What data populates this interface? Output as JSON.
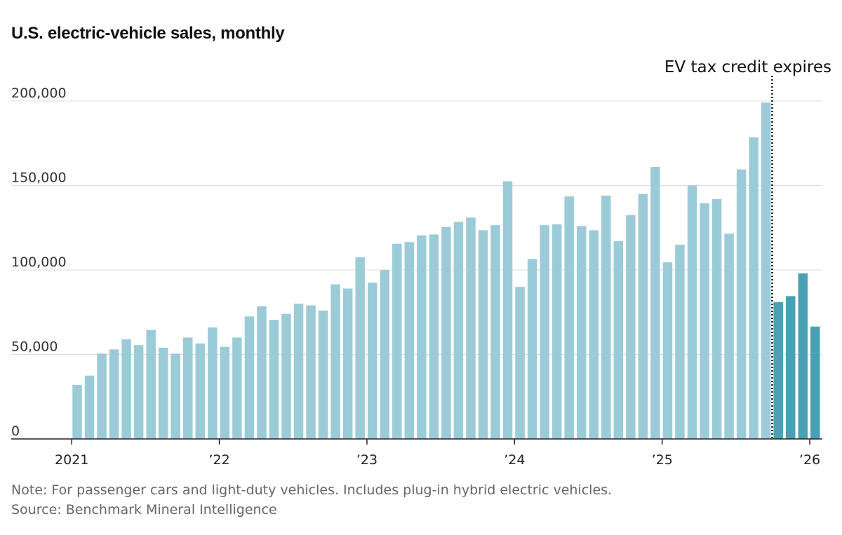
{
  "title": "U.S. electric-vehicle sales, monthly",
  "note": "Note: For passenger cars and light-duty vehicles. Includes plug-in hybrid electric vehicles.",
  "source": "Source: Benchmark Mineral Intelligence",
  "colors": {
    "bar": "#9ccbd8",
    "highlight": "#4aa0b7",
    "grid": "#dddddd",
    "axis": "#222222"
  },
  "chart_data": {
    "type": "bar",
    "start_month": "2021-01",
    "values": [
      32000,
      37500,
      50500,
      53000,
      59000,
      55500,
      64500,
      54000,
      50500,
      60000,
      56500,
      66000,
      54500,
      60000,
      72500,
      78500,
      70500,
      74000,
      80000,
      79000,
      76000,
      91500,
      89000,
      107500,
      92500,
      100000,
      115500,
      116500,
      120500,
      121000,
      125500,
      128500,
      131000,
      123500,
      126500,
      152500,
      90000,
      106500,
      126500,
      127000,
      143500,
      126000,
      123500,
      144000,
      117000,
      132500,
      145000,
      161000,
      104500,
      115000,
      150000,
      139500,
      142000,
      121500,
      159500,
      178500,
      199000,
      81000,
      84500,
      98000,
      66500
    ],
    "highlight_from_index": 57,
    "ylim": [
      0,
      200000
    ],
    "yticks": [
      0,
      50000,
      100000,
      150000,
      200000
    ],
    "ytick_labels": [
      "0",
      "50,000",
      "100,000",
      "150,000",
      "200,000"
    ],
    "xtick_labels": [
      "2021",
      "’22",
      "’23",
      "’24",
      "’25",
      "’26"
    ],
    "annotation": {
      "text": "EV tax credit expires",
      "after_index": 56
    },
    "grid": true
  }
}
